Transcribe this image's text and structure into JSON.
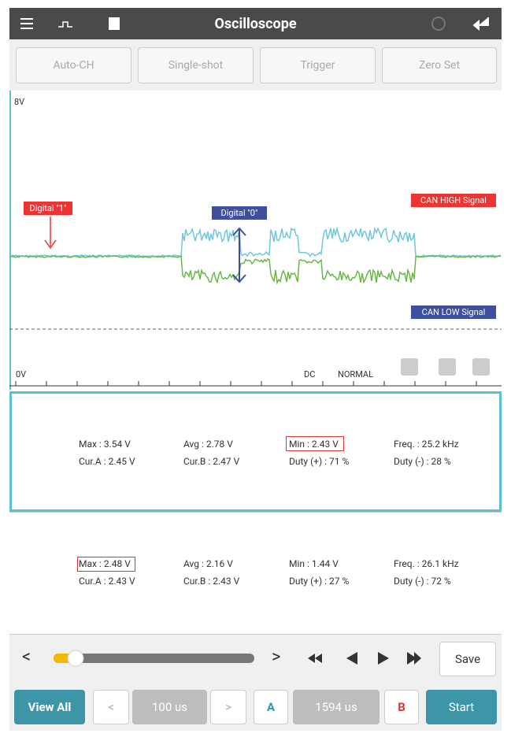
{
  "top_bar": {
    "title": "Oscilloscope"
  },
  "mode_buttons": [
    "Auto-CH",
    "Single-shot",
    "Trigger",
    "Zero Set"
  ],
  "scope": {
    "scale_top": "8V",
    "scale_bottom": "0V",
    "marker_high": "Digital \"1\"",
    "marker_low": "Digital \"0\"",
    "can_high": "CAN HIGH Signal",
    "can_low": "CAN LOW Signal",
    "coupling": "DC",
    "trigger_mode": "NORMAL"
  },
  "channels": [
    {
      "rows": [
        [
          "Max : 3.54 V",
          "Avg : 2.78 V",
          "Min : 2.43 V",
          "Freq. : 25.2 kHz"
        ],
        [
          "Cur.A : 2.45 V",
          "Cur.B : 2.47 V",
          "Duty (+) : 71 %",
          "Duty (-) : 28 %"
        ]
      ]
    },
    {
      "rows": [
        [
          "Max : 2.48 V",
          "Avg : 2.16 V",
          "Min : 1.44 V",
          "Freq. : 26.1 kHz"
        ],
        [
          "Cur.A : 2.43 V",
          "Cur.B : 2.43 V",
          "Duty (+) : 27 %",
          "Duty (-) : 72 %"
        ]
      ]
    }
  ],
  "playback": {
    "prev": "<",
    "next": ">",
    "save": "Save"
  },
  "bottom_bar": {
    "view_all": "View All",
    "prev": "<",
    "time_div": "100 us",
    "next": ">",
    "cursor_a": "A",
    "cursor_gap": "1594 us",
    "cursor_b": "B",
    "start": "Start"
  }
}
